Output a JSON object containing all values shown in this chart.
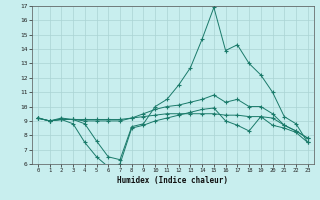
{
  "xlabel": "Humidex (Indice chaleur)",
  "x": [
    0,
    1,
    2,
    3,
    4,
    5,
    6,
    7,
    8,
    9,
    10,
    11,
    12,
    13,
    14,
    15,
    16,
    17,
    18,
    19,
    20,
    21,
    22,
    23
  ],
  "line_max": [
    9.2,
    9.0,
    9.1,
    9.1,
    8.8,
    7.6,
    6.5,
    6.3,
    8.6,
    8.8,
    10.0,
    10.5,
    11.5,
    12.7,
    14.7,
    16.9,
    13.9,
    14.3,
    13.0,
    12.2,
    11.0,
    9.3,
    8.8,
    7.5
  ],
  "line_q3": [
    9.2,
    9.0,
    9.2,
    9.1,
    9.0,
    9.0,
    9.0,
    9.0,
    9.2,
    9.5,
    9.8,
    10.0,
    10.1,
    10.3,
    10.5,
    10.8,
    10.3,
    10.5,
    10.0,
    10.0,
    9.5,
    8.7,
    8.3,
    7.8
  ],
  "line_med": [
    9.2,
    9.0,
    9.1,
    9.1,
    9.1,
    9.1,
    9.1,
    9.1,
    9.2,
    9.3,
    9.4,
    9.5,
    9.5,
    9.5,
    9.5,
    9.5,
    9.4,
    9.4,
    9.3,
    9.3,
    9.2,
    8.7,
    8.3,
    7.8
  ],
  "line_min": [
    9.2,
    9.0,
    9.1,
    8.8,
    7.5,
    6.5,
    5.8,
    6.0,
    8.5,
    8.7,
    9.0,
    9.2,
    9.4,
    9.6,
    9.8,
    9.9,
    9.0,
    8.7,
    8.3,
    9.3,
    8.7,
    8.5,
    8.2,
    7.5
  ],
  "line_color": "#1a7a6a",
  "bg_color": "#c8eeee",
  "grid_color": "#aad4d4",
  "ylim": [
    6,
    17
  ],
  "xlim": [
    -0.5,
    23.5
  ],
  "yticks": [
    6,
    7,
    8,
    9,
    10,
    11,
    12,
    13,
    14,
    15,
    16,
    17
  ],
  "xticks": [
    0,
    1,
    2,
    3,
    4,
    5,
    6,
    7,
    8,
    9,
    10,
    11,
    12,
    13,
    14,
    15,
    16,
    17,
    18,
    19,
    20,
    21,
    22,
    23
  ]
}
